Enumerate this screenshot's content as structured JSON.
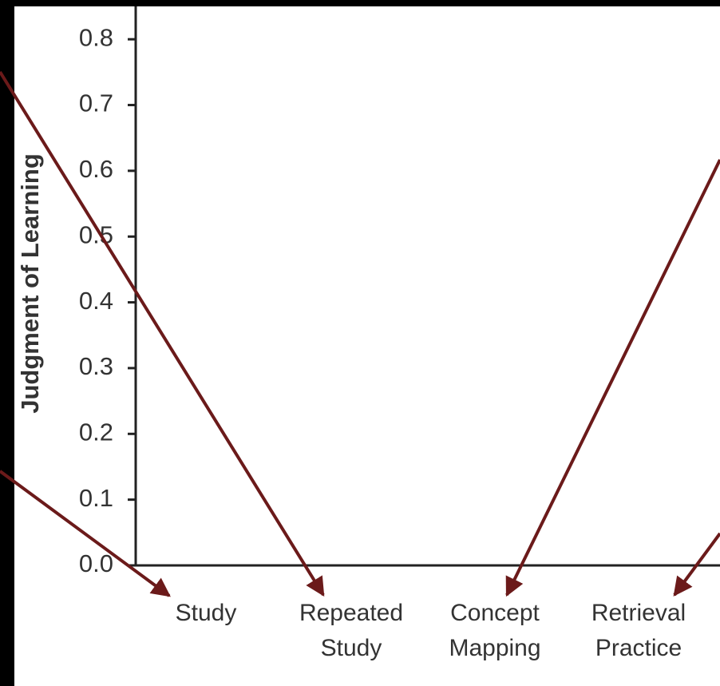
{
  "chart_data": {
    "type": "bar",
    "ylabel": "Judgment of Learning",
    "categories": [
      "Study",
      "Repeated Study",
      "Concept Mapping",
      "Retrieval Practice"
    ],
    "values": [
      0,
      0,
      0,
      0
    ],
    "colors": [
      "#b01e1e",
      "#c9b400",
      "#1f3fb0",
      "#1a8a2a"
    ],
    "ylim": [
      0,
      0.85
    ],
    "yticks": [
      {
        "value": 0,
        "label": "0.0"
      },
      0.1,
      0.2,
      0.3,
      0.4,
      0.5,
      0.6,
      0.7,
      0.8
    ],
    "grid": false
  }
}
